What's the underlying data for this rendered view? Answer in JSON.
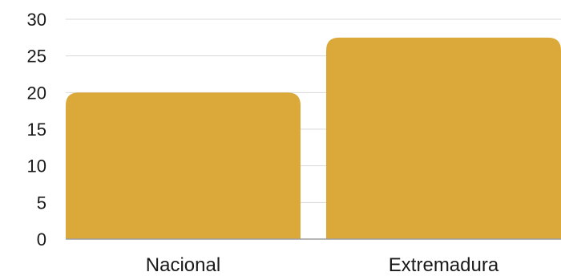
{
  "chart_data": {
    "type": "bar",
    "categories": [
      "Nacional",
      "Extremadura"
    ],
    "values": [
      20,
      27.5
    ],
    "title": "",
    "xlabel": "",
    "ylabel": "",
    "ylim": [
      0,
      30
    ],
    "yticks": [
      0,
      5,
      10,
      15,
      20,
      25,
      30
    ],
    "grid": true,
    "bar_color": "#dba93a"
  }
}
